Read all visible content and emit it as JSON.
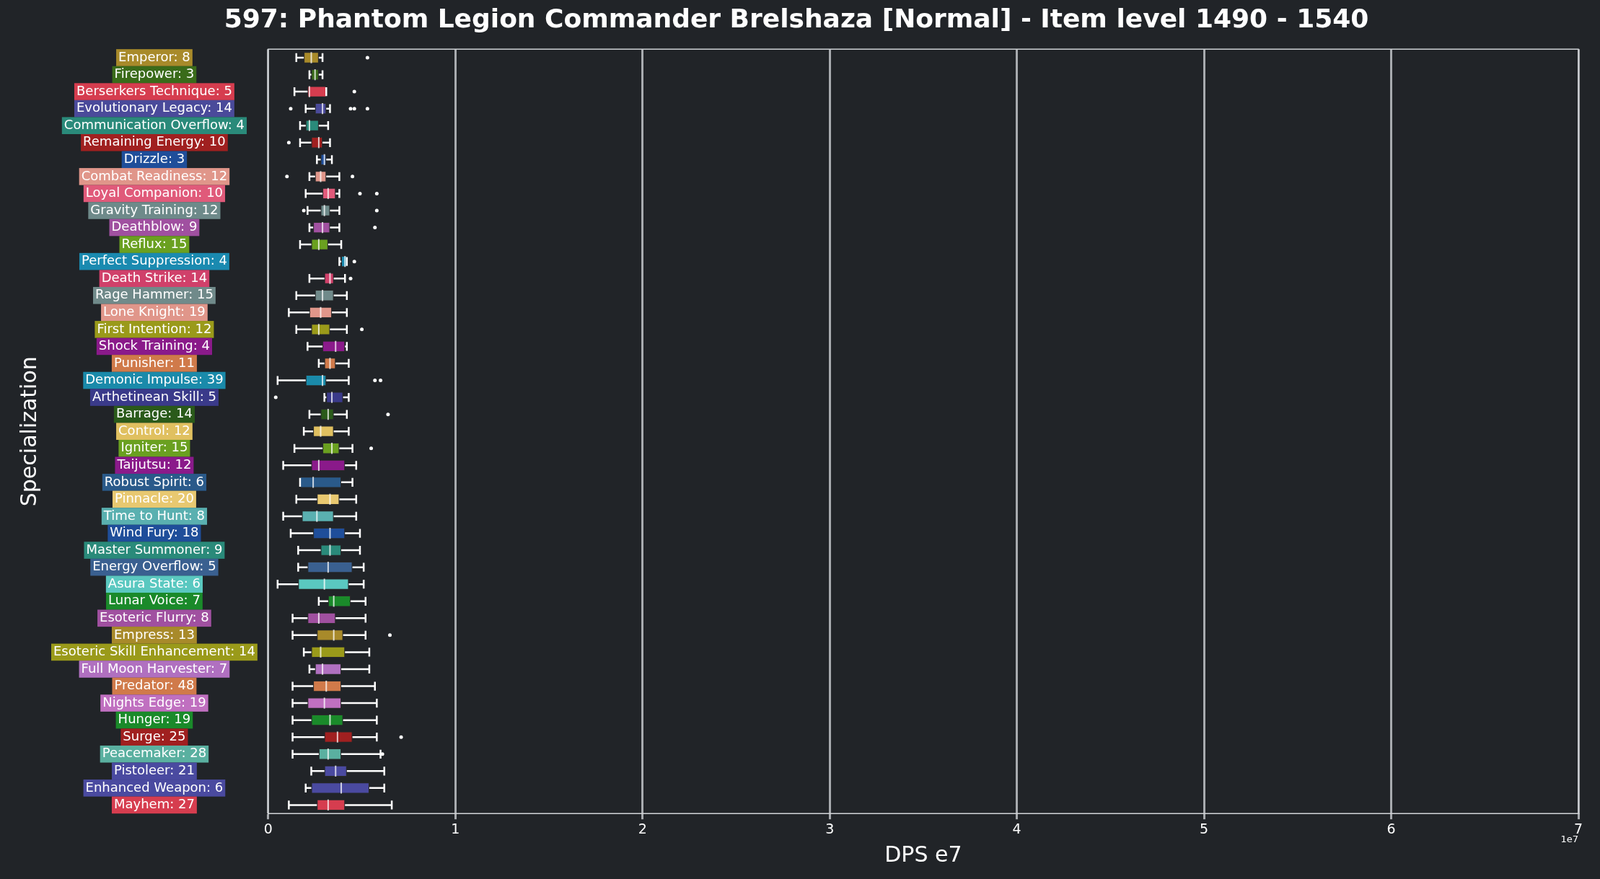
{
  "chart_data": {
    "type": "boxplot",
    "orientation": "horizontal",
    "title": "597: Phantom Legion Commander Brelshaza [Normal] - Item level 1490 - 1540",
    "x_label": "DPS e7",
    "y_label": "Specialization",
    "annotations": [
      "1e7"
    ],
    "xlim": [
      0,
      7
    ],
    "xticks": [
      0,
      1,
      2,
      3,
      4,
      5,
      6,
      7
    ],
    "grid": true,
    "categories": [
      "Emperor: 8",
      "Firepower: 3",
      "Berserkers Technique: 5",
      "Evolutionary Legacy: 14",
      "Communication Overflow: 4",
      "Remaining Energy: 10",
      "Drizzle: 3",
      "Combat Readiness: 12",
      "Loyal Companion: 10",
      "Gravity Training: 12",
      "Deathblow: 9",
      "Reflux: 15",
      "Perfect Suppression: 4",
      "Death Strike: 14",
      "Rage Hammer: 15",
      "Lone Knight: 19",
      "First Intention: 12",
      "Shock Training: 4",
      "Punisher: 11",
      "Demonic Impulse: 39",
      "Arthetinean Skill: 5",
      "Barrage: 14",
      "Control: 12",
      "Igniter: 15",
      "Taijutsu: 12",
      "Robust Spirit: 6",
      "Pinnacle: 20",
      "Time to Hunt: 8",
      "Wind Fury: 18",
      "Master Summoner: 9",
      "Energy Overflow: 5",
      "Asura State: 6",
      "Lunar Voice: 7",
      "Esoteric Flurry: 8",
      "Empress: 13",
      "Esoteric Skill Enhancement: 14",
      "Full Moon Harvester: 7",
      "Predator: 48",
      "Nights Edge: 19",
      "Hunger: 19",
      "Surge: 25",
      "Peacemaker: 28",
      "Pistoleer: 21",
      "Enhanced Weapon: 6",
      "Mayhem: 27"
    ],
    "colors": [
      "#a88a2a",
      "#3a6b1a",
      "#d63d4f",
      "#4a4a9a",
      "#2a8a7a",
      "#a02020",
      "#1f4e9a",
      "#e0968a",
      "#e05a7a",
      "#6e8a8a",
      "#a050a0",
      "#6aa020",
      "#1a8ab0",
      "#d0406a",
      "#708a8a",
      "#e0968a",
      "#9a9a1a",
      "#8a1a8a",
      "#d07a4a",
      "#1a8aaa",
      "#3a3a8a",
      "#2a5a1a",
      "#e0c060",
      "#6aa020",
      "#8a1a8a",
      "#2a5a8a",
      "#e8c870",
      "#5ab0b0",
      "#1f4e9a",
      "#2a8a7a",
      "#3a6090",
      "#5ac8c0",
      "#1a8a2a",
      "#a050a0",
      "#a88a2a",
      "#9a9a1a",
      "#b070c0",
      "#d07a4a",
      "#c070c0",
      "#1a8a2a",
      "#a02020",
      "#5ab0a0",
      "#4a4aa0",
      "#4a4aa0",
      "#d63d4f"
    ],
    "boxes": [
      {
        "min": 0.15,
        "q1": 0.19,
        "median": 0.23,
        "q3": 0.27,
        "max": 0.29,
        "outliers": [
          0.53
        ]
      },
      {
        "min": 0.22,
        "q1": 0.23,
        "median": 0.25,
        "q3": 0.27,
        "max": 0.29,
        "outliers": []
      },
      {
        "min": 0.14,
        "q1": 0.21,
        "median": 0.22,
        "q3": 0.31,
        "max": 0.31,
        "outliers": [
          0.46
        ]
      },
      {
        "min": 0.2,
        "q1": 0.25,
        "median": 0.29,
        "q3": 0.31,
        "max": 0.33,
        "outliers": [
          0.12,
          0.44,
          0.46,
          0.53
        ]
      },
      {
        "min": 0.17,
        "q1": 0.2,
        "median": 0.22,
        "q3": 0.27,
        "max": 0.32,
        "outliers": []
      },
      {
        "min": 0.17,
        "q1": 0.23,
        "median": 0.27,
        "q3": 0.29,
        "max": 0.33,
        "outliers": [
          0.11
        ]
      },
      {
        "min": 0.26,
        "q1": 0.28,
        "median": 0.3,
        "q3": 0.31,
        "max": 0.34,
        "outliers": []
      },
      {
        "min": 0.22,
        "q1": 0.25,
        "median": 0.28,
        "q3": 0.31,
        "max": 0.38,
        "outliers": [
          0.1,
          0.45
        ]
      },
      {
        "min": 0.2,
        "q1": 0.29,
        "median": 0.32,
        "q3": 0.36,
        "max": 0.38,
        "outliers": [
          0.49,
          0.58
        ]
      },
      {
        "min": 0.21,
        "q1": 0.28,
        "median": 0.3,
        "q3": 0.33,
        "max": 0.38,
        "outliers": [
          0.19,
          0.58
        ]
      },
      {
        "min": 0.22,
        "q1": 0.24,
        "median": 0.29,
        "q3": 0.33,
        "max": 0.38,
        "outliers": [
          0.57
        ]
      },
      {
        "min": 0.17,
        "q1": 0.23,
        "median": 0.27,
        "q3": 0.32,
        "max": 0.39,
        "outliers": []
      },
      {
        "min": 0.38,
        "q1": 0.39,
        "median": 0.41,
        "q3": 0.42,
        "max": 0.42,
        "outliers": [
          0.46
        ]
      },
      {
        "min": 0.22,
        "q1": 0.3,
        "median": 0.33,
        "q3": 0.35,
        "max": 0.41,
        "outliers": [
          0.44
        ]
      },
      {
        "min": 0.15,
        "q1": 0.25,
        "median": 0.29,
        "q3": 0.35,
        "max": 0.42,
        "outliers": []
      },
      {
        "min": 0.11,
        "q1": 0.22,
        "median": 0.28,
        "q3": 0.34,
        "max": 0.42,
        "outliers": []
      },
      {
        "min": 0.15,
        "q1": 0.23,
        "median": 0.27,
        "q3": 0.33,
        "max": 0.42,
        "outliers": [
          0.5
        ]
      },
      {
        "min": 0.21,
        "q1": 0.29,
        "median": 0.36,
        "q3": 0.41,
        "max": 0.42,
        "outliers": []
      },
      {
        "min": 0.27,
        "q1": 0.3,
        "median": 0.33,
        "q3": 0.36,
        "max": 0.43,
        "outliers": []
      },
      {
        "min": 0.05,
        "q1": 0.2,
        "median": 0.29,
        "q3": 0.31,
        "max": 0.43,
        "outliers": [
          0.57,
          0.6
        ]
      },
      {
        "min": 0.3,
        "q1": 0.31,
        "median": 0.34,
        "q3": 0.4,
        "max": 0.43,
        "outliers": [
          0.04
        ]
      },
      {
        "min": 0.22,
        "q1": 0.28,
        "median": 0.32,
        "q3": 0.35,
        "max": 0.42,
        "outliers": [
          0.64
        ]
      },
      {
        "min": 0.19,
        "q1": 0.24,
        "median": 0.28,
        "q3": 0.35,
        "max": 0.43,
        "outliers": []
      },
      {
        "min": 0.14,
        "q1": 0.29,
        "median": 0.34,
        "q3": 0.38,
        "max": 0.45,
        "outliers": [
          0.55
        ]
      },
      {
        "min": 0.08,
        "q1": 0.23,
        "median": 0.27,
        "q3": 0.41,
        "max": 0.47,
        "outliers": []
      },
      {
        "min": 0.17,
        "q1": 0.17,
        "median": 0.24,
        "q3": 0.39,
        "max": 0.45,
        "outliers": []
      },
      {
        "min": 0.15,
        "q1": 0.26,
        "median": 0.33,
        "q3": 0.38,
        "max": 0.47,
        "outliers": []
      },
      {
        "min": 0.08,
        "q1": 0.18,
        "median": 0.26,
        "q3": 0.35,
        "max": 0.47,
        "outliers": []
      },
      {
        "min": 0.12,
        "q1": 0.24,
        "median": 0.33,
        "q3": 0.41,
        "max": 0.49,
        "outliers": []
      },
      {
        "min": 0.16,
        "q1": 0.28,
        "median": 0.33,
        "q3": 0.39,
        "max": 0.49,
        "outliers": []
      },
      {
        "min": 0.16,
        "q1": 0.21,
        "median": 0.32,
        "q3": 0.45,
        "max": 0.51,
        "outliers": []
      },
      {
        "min": 0.05,
        "q1": 0.16,
        "median": 0.3,
        "q3": 0.43,
        "max": 0.51,
        "outliers": []
      },
      {
        "min": 0.27,
        "q1": 0.32,
        "median": 0.35,
        "q3": 0.44,
        "max": 0.52,
        "outliers": []
      },
      {
        "min": 0.13,
        "q1": 0.21,
        "median": 0.27,
        "q3": 0.36,
        "max": 0.52,
        "outliers": []
      },
      {
        "min": 0.13,
        "q1": 0.26,
        "median": 0.35,
        "q3": 0.4,
        "max": 0.52,
        "outliers": [
          0.65
        ]
      },
      {
        "min": 0.19,
        "q1": 0.23,
        "median": 0.28,
        "q3": 0.41,
        "max": 0.54,
        "outliers": []
      },
      {
        "min": 0.22,
        "q1": 0.25,
        "median": 0.29,
        "q3": 0.39,
        "max": 0.54,
        "outliers": []
      },
      {
        "min": 0.13,
        "q1": 0.24,
        "median": 0.31,
        "q3": 0.39,
        "max": 0.57,
        "outliers": []
      },
      {
        "min": 0.13,
        "q1": 0.21,
        "median": 0.3,
        "q3": 0.39,
        "max": 0.58,
        "outliers": []
      },
      {
        "min": 0.13,
        "q1": 0.23,
        "median": 0.33,
        "q3": 0.4,
        "max": 0.58,
        "outliers": []
      },
      {
        "min": 0.13,
        "q1": 0.3,
        "median": 0.37,
        "q3": 0.45,
        "max": 0.58,
        "outliers": [
          0.71
        ]
      },
      {
        "min": 0.13,
        "q1": 0.27,
        "median": 0.32,
        "q3": 0.39,
        "max": 0.6,
        "outliers": [
          0.61
        ]
      },
      {
        "min": 0.23,
        "q1": 0.3,
        "median": 0.36,
        "q3": 0.42,
        "max": 0.62,
        "outliers": []
      },
      {
        "min": 0.2,
        "q1": 0.23,
        "median": 0.39,
        "q3": 0.54,
        "max": 0.62,
        "outliers": []
      },
      {
        "min": 0.11,
        "q1": 0.26,
        "median": 0.32,
        "q3": 0.41,
        "max": 0.66,
        "outliers": []
      }
    ]
  }
}
